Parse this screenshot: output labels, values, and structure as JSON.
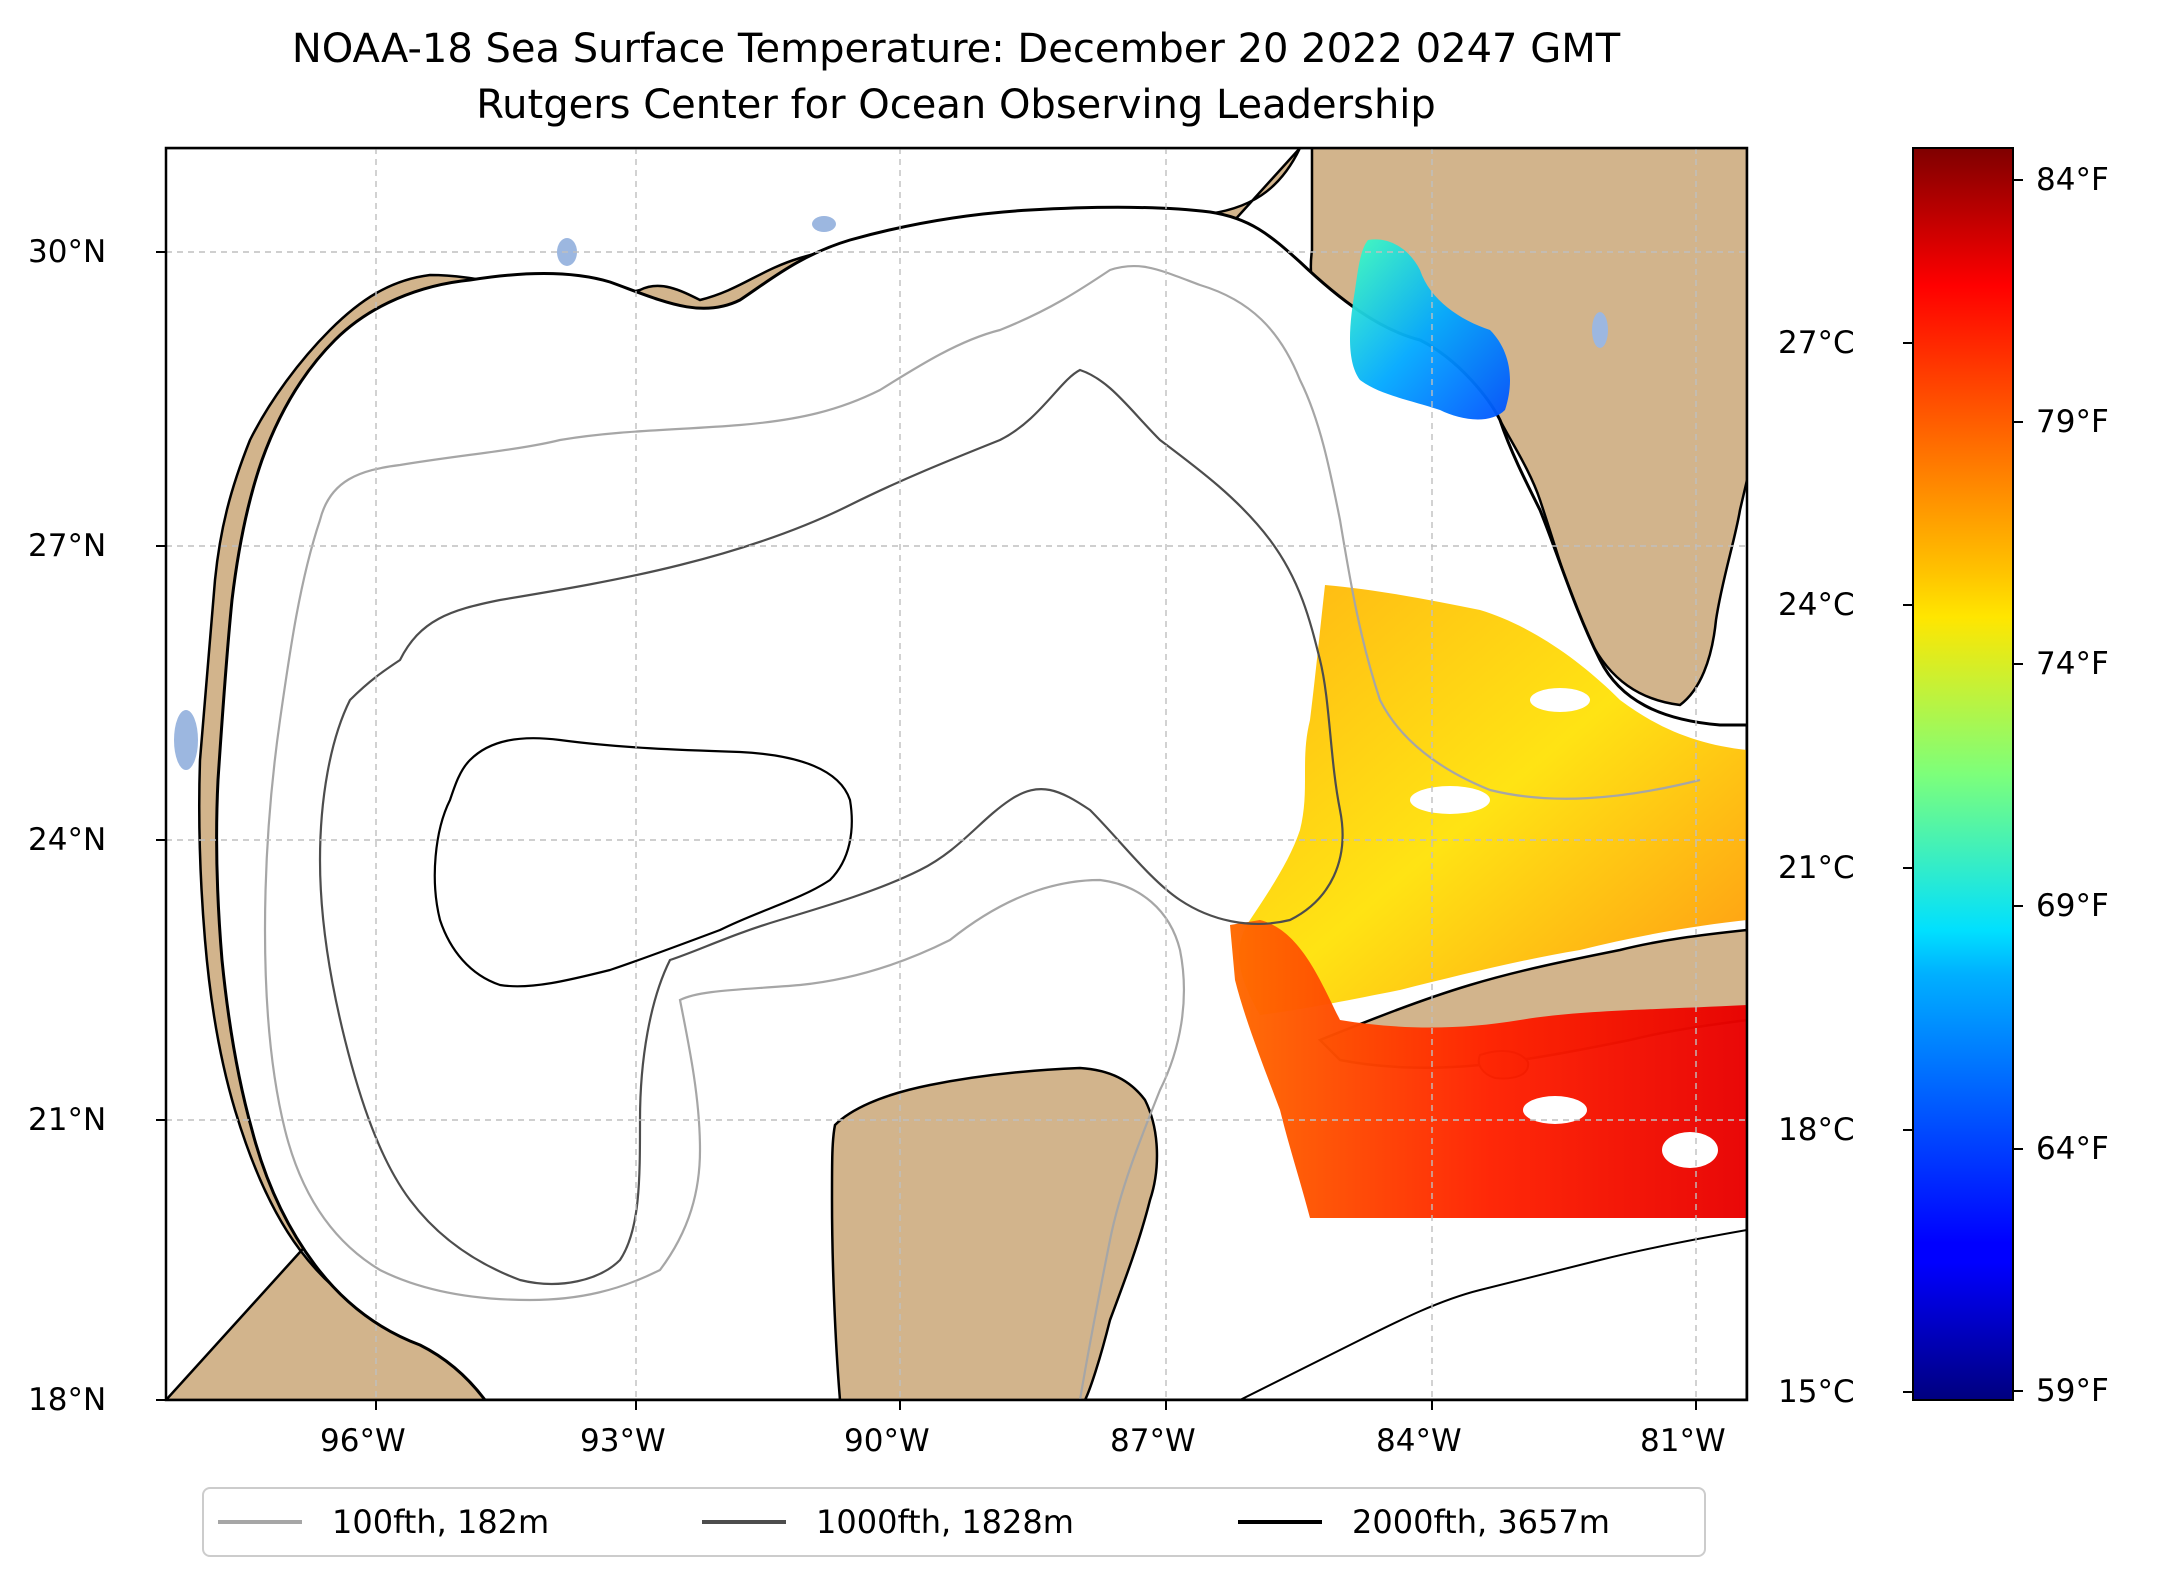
{
  "title": {
    "line1": "NOAA-18 Sea Surface Temperature: December 20 2022 0247 GMT",
    "line2": "Rutgers Center for Ocean Observing Leadership"
  },
  "map": {
    "lat_labels": [
      "30°N",
      "27°N",
      "24°N",
      "21°N",
      "18°N"
    ],
    "lon_labels": [
      "96°W",
      "93°W",
      "90°W",
      "87°W",
      "84°W",
      "81°W"
    ],
    "land_color": "#d2b48c",
    "lake_color": "#9cb7e0"
  },
  "colorbar": {
    "celsius_labels": [
      "27°C",
      "24°C",
      "21°C",
      "18°C",
      "15°C"
    ],
    "fahrenheit_labels": [
      "84°F",
      "79°F",
      "74°F",
      "69°F",
      "64°F",
      "59°F"
    ],
    "colormap": "jet",
    "range_celsius": [
      15,
      29
    ]
  },
  "legend": {
    "items": [
      {
        "label": "100fth, 182m",
        "color": "#a6a6a6"
      },
      {
        "label": "1000fth, 1828m",
        "color": "#4d4d4d"
      },
      {
        "label": "2000fth, 3657m",
        "color": "#000000"
      }
    ]
  }
}
